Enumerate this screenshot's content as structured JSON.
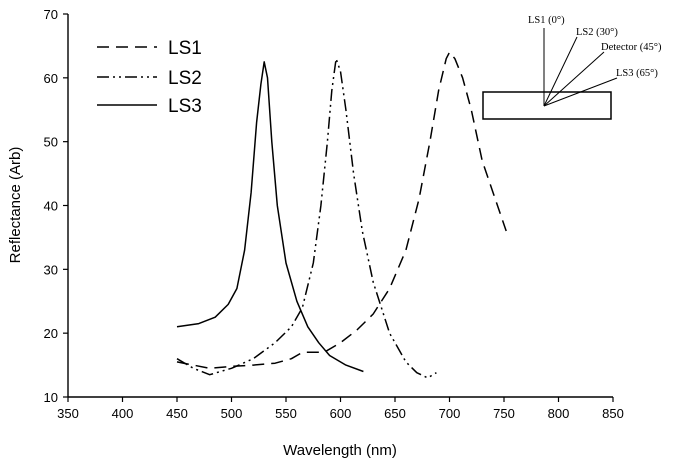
{
  "chart_data": {
    "type": "line",
    "title": "",
    "xlabel": "Wavelength (nm)",
    "ylabel": "Reflectance (Arb)",
    "xlim": [
      350,
      850
    ],
    "ylim": [
      10,
      70
    ],
    "x_ticks": [
      350,
      400,
      450,
      500,
      550,
      600,
      650,
      700,
      750,
      800,
      850
    ],
    "y_ticks": [
      10,
      20,
      30,
      40,
      50,
      60,
      70
    ],
    "grid": false,
    "legend_position": "top-left",
    "series": [
      {
        "name": "LS1",
        "dash": "dash",
        "x": [
          450,
          480,
          500,
          520,
          540,
          555,
          565,
          575,
          585,
          600,
          615,
          630,
          645,
          660,
          672,
          682,
          690,
          697,
          700,
          705,
          712,
          720,
          730,
          740,
          752
        ],
        "y": [
          15.5,
          14.5,
          14.8,
          15.0,
          15.3,
          16.0,
          17.0,
          17.0,
          17.0,
          18.5,
          20.5,
          23.0,
          27.0,
          33.0,
          41.0,
          50.0,
          58.0,
          63.0,
          64.0,
          63.0,
          60.0,
          55.0,
          47.0,
          42.0,
          36.0
        ]
      },
      {
        "name": "LS2",
        "dash": "dash-dot-dot",
        "x": [
          450,
          465,
          480,
          500,
          520,
          540,
          555,
          565,
          575,
          582,
          588,
          592,
          596,
          600,
          605,
          612,
          620,
          630,
          645,
          660,
          670,
          680,
          688
        ],
        "y": [
          16.0,
          14.5,
          13.5,
          14.5,
          16.0,
          18.5,
          21.0,
          24.0,
          31.0,
          40.0,
          50.0,
          58.0,
          63.0,
          61.0,
          55.0,
          45.0,
          36.0,
          28.0,
          20.0,
          15.5,
          13.8,
          13.0,
          13.8
        ]
      },
      {
        "name": "LS3",
        "dash": "solid",
        "x": [
          450,
          470,
          485,
          497,
          505,
          512,
          518,
          523,
          527,
          530,
          533,
          537,
          542,
          550,
          560,
          570,
          580,
          590,
          605,
          621
        ],
        "y": [
          21.0,
          21.5,
          22.5,
          24.5,
          27.0,
          33.0,
          42.0,
          53.0,
          59.0,
          62.5,
          60.0,
          50.0,
          40.0,
          31.0,
          25.0,
          21.0,
          18.5,
          16.5,
          15.0,
          14.0
        ]
      }
    ],
    "inset": {
      "labels": [
        "LS1 (0°)",
        "LS2 (30°)",
        "Detector (45°)",
        "LS3 (65°)"
      ]
    }
  }
}
